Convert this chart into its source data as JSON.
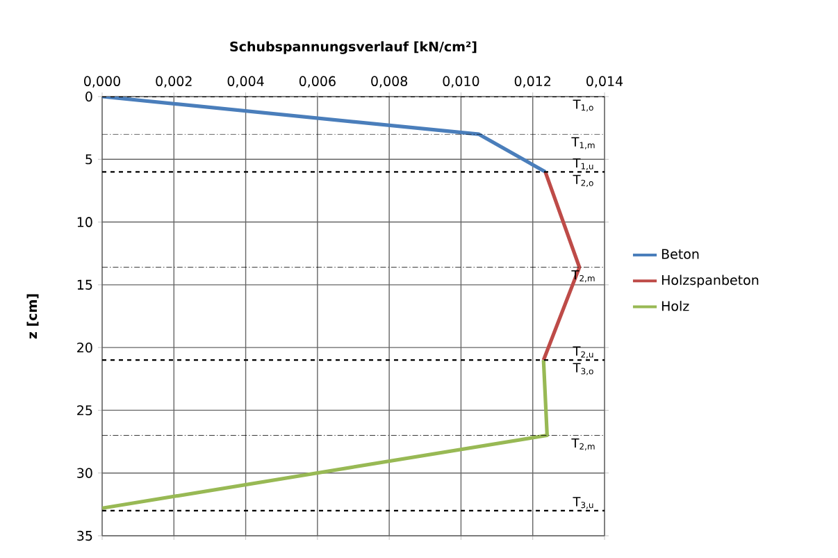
{
  "chart_data": {
    "type": "line",
    "xlabel": "Schubspannungsverlauf [kN/cm²]",
    "ylabel": "z [cm]",
    "xlim": [
      0,
      0.014
    ],
    "ylim": [
      35,
      0
    ],
    "xticks": [
      {
        "value": 0,
        "label": "0,000"
      },
      {
        "value": 0.002,
        "label": "0,002"
      },
      {
        "value": 0.004,
        "label": "0,004"
      },
      {
        "value": 0.006,
        "label": "0,006"
      },
      {
        "value": 0.008,
        "label": "0,008"
      },
      {
        "value": 0.01,
        "label": "0,010"
      },
      {
        "value": 0.012,
        "label": "0,012"
      },
      {
        "value": 0.014,
        "label": "0,014"
      }
    ],
    "yticks": [
      0,
      5,
      10,
      15,
      20,
      25,
      30,
      35
    ],
    "grid": true,
    "legend": "right",
    "marker": "none",
    "line_style": "solid",
    "series": [
      {
        "name": "Beton",
        "color": "#4a7ebb",
        "x": [
          0,
          0.0105,
          0.01235
        ],
        "values": [
          0,
          3,
          6
        ]
      },
      {
        "name": "Holzspanbeton",
        "color": "#be4b48",
        "x": [
          0.01235,
          0.0133,
          0.0123
        ],
        "values": [
          6,
          13.6,
          21
        ]
      },
      {
        "name": "Holz",
        "color": "#98b954",
        "x": [
          0.0123,
          0.0124,
          0
        ],
        "values": [
          21,
          27,
          32.8
        ]
      }
    ],
    "ref_lines": [
      {
        "axis": "y",
        "value": 0,
        "line_style": "dashed",
        "color": "#000000",
        "label": "T$_{1,o}$"
      },
      {
        "axis": "y",
        "value": 3,
        "line_style": "dashdot",
        "color": "#000000",
        "label": "T$_{1,m}$"
      },
      {
        "axis": "y",
        "value": 6,
        "line_style": "dashed",
        "color": "#000000",
        "label": "T$_{2,o}$"
      },
      {
        "axis": "y",
        "value": 13.6,
        "line_style": "dashdot",
        "color": "#000000",
        "label": "T$_{2,m}$"
      },
      {
        "axis": "y",
        "value": 21,
        "line_style": "dashed",
        "color": "#000000",
        "label": "T$_{3,o}$"
      },
      {
        "axis": "y",
        "value": 27,
        "line_style": "dashdot",
        "color": "#000000",
        "label": "T$_{2,m}$"
      },
      {
        "axis": "y",
        "value": 33,
        "line_style": "dashed",
        "color": "#000000",
        "label": "T$_{3,u}$"
      }
    ],
    "annotations": [
      "T$_{1,u}$",
      "T$_{2,u}$"
    ]
  }
}
